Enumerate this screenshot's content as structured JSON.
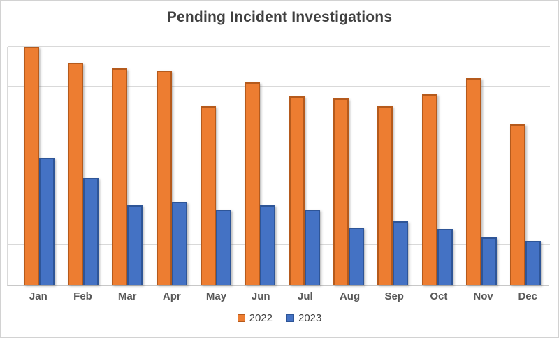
{
  "title": "Pending Incident Investigations",
  "chart_data": {
    "type": "bar",
    "title": "Pending Incident Investigations",
    "categories": [
      "Jan",
      "Feb",
      "Mar",
      "Apr",
      "May",
      "Jun",
      "Jul",
      "Aug",
      "Sep",
      "Oct",
      "Nov",
      "Dec"
    ],
    "series": [
      {
        "name": "2022",
        "color": "#ED7D31",
        "border_color": "#B55A1C",
        "values": [
          60,
          56,
          54.5,
          54,
          45,
          51,
          47.5,
          47,
          45,
          48,
          52,
          40.5
        ]
      },
      {
        "name": "2023",
        "color": "#4472C4",
        "border_color": "#2E5597",
        "values": [
          32,
          27,
          20,
          21,
          19,
          20,
          19,
          14.5,
          16,
          14,
          12,
          11
        ]
      }
    ],
    "xlabel": "",
    "ylabel": "",
    "ylim": [
      0,
      60
    ],
    "gridline_step": 10,
    "grid": true,
    "y_tick_labels_visible": false,
    "legend_position": "bottom"
  },
  "palette": {
    "title_text": "#404040",
    "axis_label_text": "#595959",
    "legend_text": "#404040",
    "gridline": "#d9d9d9",
    "frame_border": "#d2d2d2",
    "background": "#ffffff"
  }
}
